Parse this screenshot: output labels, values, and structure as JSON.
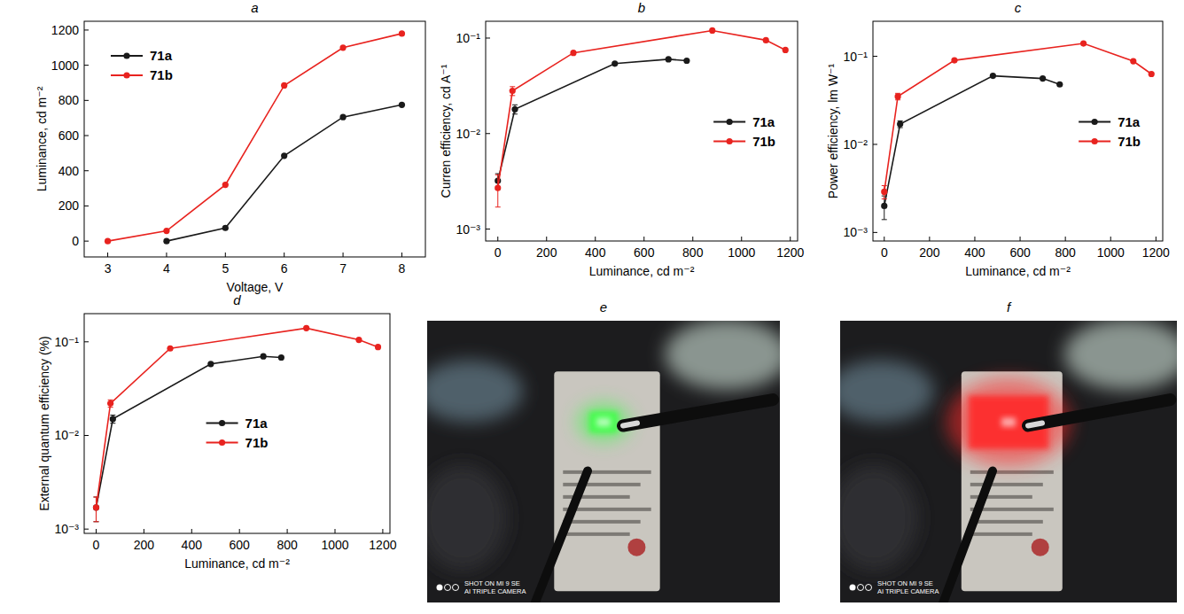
{
  "chart_data": [
    {
      "type": "line",
      "title": "a",
      "x_label": "Voltage, V",
      "y_label": "Luminance, cd m⁻²",
      "xlim": [
        2.6,
        8.4
      ],
      "xticks": [
        3,
        4,
        5,
        6,
        7,
        8
      ],
      "ylim": [
        -90,
        1250
      ],
      "yticks": [
        0,
        200,
        400,
        600,
        800,
        1000,
        1200
      ],
      "legend": "upper left",
      "marker": "circle",
      "line_style": "solid",
      "series": [
        {
          "name": "71a",
          "color": "#1a1a1a",
          "x": [
            4,
            5,
            6,
            7,
            8
          ],
          "values": [
            0,
            75,
            485,
            705,
            775
          ]
        },
        {
          "name": "71b",
          "color": "#e8231f",
          "x": [
            3,
            4,
            5,
            6,
            7,
            8
          ],
          "values": [
            0,
            58,
            320,
            885,
            1100,
            1180
          ]
        }
      ]
    },
    {
      "type": "line",
      "title": "b",
      "x_label": "Luminance, cd m⁻²",
      "y_label": "Curren efficiency, cd A⁻¹",
      "log": "y",
      "xlim": [
        -50,
        1230
      ],
      "xticks": [
        0,
        200,
        400,
        600,
        800,
        1000,
        1200
      ],
      "ylim": [
        0.00075,
        0.15
      ],
      "yticks": [
        {
          "value": 0.001,
          "label": "10⁻³"
        },
        {
          "value": 0.01,
          "label": "10⁻²"
        },
        {
          "value": 0.1,
          "label": "10⁻¹"
        }
      ],
      "legend": "center right",
      "marker": "circle",
      "line_style": "solid",
      "series": [
        {
          "name": "71a",
          "color": "#1a1a1a",
          "x": [
            0,
            70,
            480,
            700,
            775
          ],
          "values": [
            0.0032,
            0.018,
            0.054,
            0.06,
            0.058
          ],
          "errors": [
            0.0006,
            0.002,
            null,
            null,
            null
          ]
        },
        {
          "name": "71b",
          "color": "#e8231f",
          "x": [
            0,
            60,
            310,
            880,
            1100,
            1180
          ],
          "values": [
            0.0027,
            0.028,
            0.07,
            0.12,
            0.095,
            0.075
          ],
          "errors": [
            0.001,
            0.003,
            null,
            null,
            null,
            null
          ]
        }
      ]
    },
    {
      "type": "line",
      "title": "c",
      "x_label": "Luminance, cd m⁻²",
      "y_label": "Power efficiency, lm W⁻¹",
      "log": "y",
      "xlim": [
        -50,
        1230
      ],
      "xticks": [
        0,
        200,
        400,
        600,
        800,
        1000,
        1200
      ],
      "ylim": [
        0.0008,
        0.25
      ],
      "yticks": [
        {
          "value": 0.001,
          "label": "10⁻³"
        },
        {
          "value": 0.01,
          "label": "10⁻²"
        },
        {
          "value": 0.1,
          "label": "10⁻¹"
        }
      ],
      "legend": "center right",
      "marker": "circle",
      "line_style": "solid",
      "series": [
        {
          "name": "71a",
          "color": "#1a1a1a",
          "x": [
            0,
            70,
            480,
            700,
            775
          ],
          "values": [
            0.002,
            0.017,
            0.06,
            0.056,
            0.048
          ],
          "errors": [
            0.0006,
            0.0015,
            null,
            null,
            null
          ]
        },
        {
          "name": "71b",
          "color": "#e8231f",
          "x": [
            0,
            60,
            310,
            880,
            1100,
            1180
          ],
          "values": [
            0.0029,
            0.035,
            0.09,
            0.14,
            0.088,
            0.063
          ],
          "errors": [
            0.0005,
            0.003,
            null,
            null,
            null,
            null
          ]
        }
      ]
    },
    {
      "type": "line",
      "title": "d",
      "x_label": "Luminance, cd m⁻²",
      "y_label": "External quantum efficiency (%)",
      "log": "y",
      "xlim": [
        -50,
        1230
      ],
      "xticks": [
        0,
        200,
        400,
        600,
        800,
        1000,
        1200
      ],
      "ylim": [
        0.0009,
        0.2
      ],
      "yticks": [
        {
          "value": 0.001,
          "label": "10⁻³"
        },
        {
          "value": 0.01,
          "label": "10⁻²"
        },
        {
          "value": 0.1,
          "label": "10⁻¹"
        }
      ],
      "legend": "center",
      "marker": "circle",
      "line_style": "solid",
      "series": [
        {
          "name": "71a",
          "color": "#1a1a1a",
          "x": [
            0,
            70,
            480,
            700,
            775
          ],
          "values": [
            0.0017,
            0.015,
            0.058,
            0.07,
            0.068
          ],
          "errors": [
            0.0005,
            0.0015,
            null,
            null,
            null
          ]
        },
        {
          "name": "71b",
          "color": "#e8231f",
          "x": [
            0,
            60,
            310,
            880,
            1100,
            1180
          ],
          "values": [
            0.0017,
            0.022,
            0.085,
            0.14,
            0.105,
            0.088
          ],
          "errors": [
            0.0005,
            0.002,
            null,
            null,
            null,
            null
          ]
        }
      ]
    }
  ],
  "photos": [
    {
      "title": "e",
      "watermark": [
        "SHOT ON MI 9 SE",
        "AI TRIPLE CAMERA"
      ],
      "color": "#3cff46"
    },
    {
      "title": "f",
      "watermark": [
        "SHOT ON MI 9 SE",
        "AI TRIPLE CAMERA"
      ],
      "color": "#ff2a2a"
    }
  ]
}
